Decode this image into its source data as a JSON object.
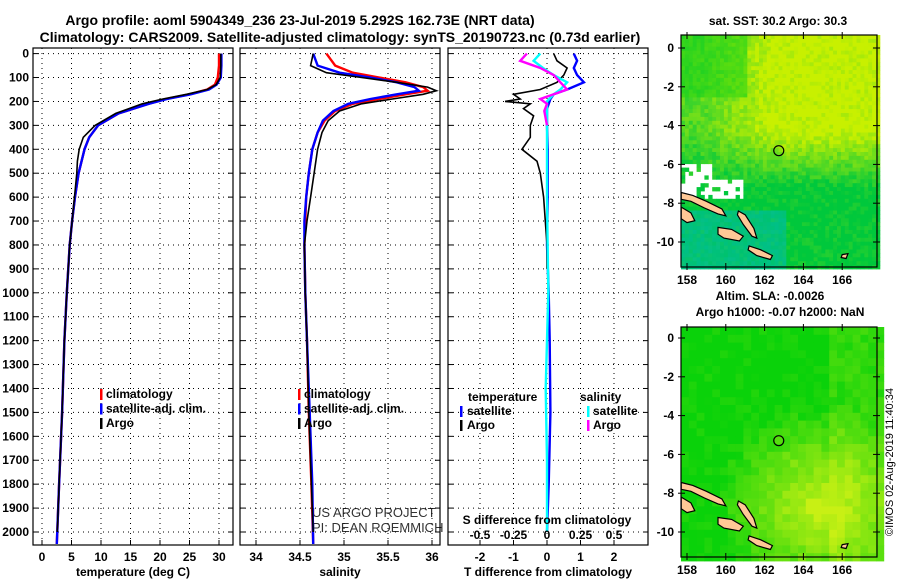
{
  "header": {
    "line1": "Argo profile: aoml 5904349_236 23-Jul-2019 5.292S 162.73E (NRT data)",
    "line2": "Climatology: CARS2009. Satellite-adjusted climatology: synTS_20190723.nc (0.73d earlier)"
  },
  "credits": {
    "line1": "US ARGO PROJECT",
    "line2": "PI: DEAN ROEMMICH",
    "timestamp": "©IMOS 02-Aug-2019 11:40:34"
  },
  "colors": {
    "climatology": "#ff0000",
    "satellite": "#0000ff",
    "argo": "#000000",
    "sal_satellite": "#00ffff",
    "sal_argo": "#ff00ff",
    "land": "#ffc896"
  },
  "chart_data": [
    {
      "type": "line",
      "name": "temperature-profile",
      "xlabel": "temperature (deg C)",
      "ylabel": "",
      "xlim": [
        -1.5,
        32
      ],
      "ylim": [
        2055,
        0
      ],
      "xticks": [
        0,
        5,
        10,
        15,
        20,
        25,
        30
      ],
      "yticks": [
        0,
        100,
        200,
        300,
        400,
        500,
        600,
        700,
        800,
        900,
        1000,
        1100,
        1200,
        1300,
        1400,
        1500,
        1600,
        1700,
        1800,
        1900,
        2000
      ],
      "legend": [
        "climatology",
        "satellite-adj. clim.",
        "Argo"
      ],
      "series": [
        {
          "name": "climatology",
          "color": "#ff0000",
          "depth": [
            0,
            50,
            100,
            130,
            150,
            170,
            190,
            210,
            250,
            300,
            350,
            400,
            500,
            600,
            700,
            800,
            1000,
            1200,
            1500,
            1800,
            2050
          ],
          "values": [
            30.0,
            30.0,
            29.8,
            29.3,
            28.0,
            25.0,
            21.0,
            18.0,
            13.0,
            9.5,
            8.0,
            7.2,
            6.2,
            5.6,
            5.1,
            4.7,
            4.2,
            3.8,
            3.4,
            2.9,
            2.5
          ]
        },
        {
          "name": "satellite-adj. clim.",
          "color": "#0000ff",
          "depth": [
            0,
            50,
            100,
            130,
            150,
            170,
            190,
            210,
            250,
            300,
            350,
            400,
            500,
            600,
            700,
            800,
            1000,
            1200,
            1500,
            1800,
            2050
          ],
          "values": [
            30.4,
            30.4,
            30.3,
            29.6,
            28.3,
            25.2,
            21.2,
            18.1,
            13.0,
            9.5,
            8.0,
            7.2,
            6.2,
            5.6,
            5.1,
            4.7,
            4.2,
            3.8,
            3.4,
            2.9,
            2.5
          ]
        },
        {
          "name": "Argo",
          "color": "#000000",
          "depth": [
            0,
            50,
            100,
            130,
            150,
            170,
            190,
            210,
            250,
            300,
            350,
            400,
            450,
            500,
            600,
            700,
            800,
            1000,
            1200,
            1500,
            1800,
            2000
          ],
          "values": [
            30.3,
            30.3,
            30.2,
            29.5,
            28.0,
            24.5,
            20.5,
            17.0,
            12.5,
            9.0,
            7.0,
            6.3,
            6.0,
            5.9,
            5.5,
            5.1,
            4.7,
            4.2,
            3.8,
            3.4,
            2.9,
            2.6
          ]
        }
      ]
    },
    {
      "type": "line",
      "name": "salinity-profile",
      "xlabel": "salinity",
      "xlim": [
        33.8,
        36.1
      ],
      "ylim": [
        2055,
        0
      ],
      "xticks": [
        34,
        34.5,
        35,
        35.5,
        36
      ],
      "legend": [
        "climatology",
        "satellite-adj. clim.",
        "Argo"
      ],
      "series": [
        {
          "name": "climatology",
          "color": "#ff0000",
          "depth": [
            0,
            50,
            80,
            100,
            120,
            140,
            155,
            170,
            190,
            210,
            240,
            280,
            330,
            400,
            500,
            600,
            700,
            800,
            1000,
            1200,
            1500,
            1800,
            2050
          ],
          "values": [
            34.8,
            34.9,
            35.1,
            35.4,
            35.7,
            35.9,
            35.95,
            35.7,
            35.4,
            35.1,
            34.9,
            34.78,
            34.7,
            34.64,
            34.6,
            34.57,
            34.56,
            34.55,
            34.56,
            34.58,
            34.6,
            34.63,
            34.65
          ]
        },
        {
          "name": "satellite-adj. clim.",
          "color": "#0000ff",
          "depth": [
            0,
            50,
            80,
            100,
            120,
            140,
            155,
            170,
            190,
            210,
            240,
            280,
            330,
            400,
            500,
            600,
            700,
            800,
            1000,
            1200,
            1500,
            1800,
            2050
          ],
          "values": [
            34.65,
            34.7,
            34.95,
            35.3,
            35.6,
            35.8,
            35.85,
            35.6,
            35.3,
            35.05,
            34.88,
            34.76,
            34.7,
            34.64,
            34.6,
            34.57,
            34.55,
            34.55,
            34.56,
            34.58,
            34.61,
            34.64,
            34.65
          ]
        },
        {
          "name": "Argo",
          "color": "#000000",
          "depth": [
            0,
            50,
            80,
            100,
            120,
            140,
            155,
            170,
            190,
            210,
            240,
            280,
            330,
            400,
            500,
            600,
            700,
            800,
            1000,
            1200,
            1500,
            1800,
            2000
          ],
          "values": [
            34.65,
            34.62,
            34.8,
            35.2,
            35.6,
            35.95,
            36.05,
            35.9,
            35.55,
            35.2,
            34.95,
            34.82,
            34.75,
            34.7,
            34.66,
            34.62,
            34.58,
            34.55,
            34.56,
            34.58,
            34.6,
            34.63,
            34.65
          ]
        }
      ]
    },
    {
      "type": "line",
      "name": "difference-profile",
      "xlabel": "T difference from climatology",
      "xlim": [
        -2.95,
        3.0
      ],
      "xticks": [
        -2,
        -1,
        0,
        1,
        2
      ],
      "s_label": "S difference from climatology",
      "s_ticks": [
        "-0.5",
        "-0.25",
        "0",
        "0.25",
        "0.5"
      ],
      "s_tick_values": [
        -0.5,
        -0.25,
        0,
        0.25,
        0.5
      ],
      "legend_t_title": "temperature",
      "legend_s_title": "salinity",
      "legend_t": [
        "satellite",
        "Argo"
      ],
      "legend_s": [
        "satellite",
        "Argo"
      ],
      "series": [
        {
          "name": "T satellite",
          "unit": "T",
          "color": "#0000ff",
          "depth": [
            0,
            30,
            60,
            90,
            120,
            150,
            170,
            190,
            210,
            230,
            260,
            300,
            400,
            600,
            800,
            1000,
            1200,
            1500,
            1800,
            2000
          ],
          "values": [
            0.8,
            0.9,
            0.8,
            0.9,
            1.1,
            0.6,
            0.2,
            0.1,
            0.05,
            0,
            0,
            0,
            0.02,
            0.02,
            0,
            0.05,
            0.08,
            0.1,
            0.05,
            0
          ]
        },
        {
          "name": "T Argo",
          "unit": "T",
          "color": "#000000",
          "depth": [
            0,
            30,
            60,
            90,
            120,
            150,
            170,
            190,
            200,
            210,
            230,
            260,
            300,
            350,
            400,
            450,
            500,
            600,
            700,
            800,
            900
          ],
          "values": [
            0.2,
            0.3,
            0.6,
            0.5,
            0.3,
            -0.2,
            -1.0,
            -0.8,
            -1.25,
            -0.5,
            -0.7,
            -0.4,
            -0.5,
            -0.5,
            -0.75,
            -0.3,
            -0.2,
            -0.1,
            -0.05,
            0,
            0
          ]
        },
        {
          "name": "S satellite",
          "unit": "S",
          "color": "#00ffff",
          "depth": [
            0,
            30,
            60,
            90,
            120,
            150,
            170,
            200,
            300,
            600,
            1000,
            1400,
            1700,
            2000
          ],
          "values": [
            -0.05,
            -0.1,
            -0.03,
            0.05,
            0.15,
            0.1,
            0.05,
            0,
            0,
            0,
            0.01,
            -0.01,
            0,
            0
          ]
        },
        {
          "name": "S Argo",
          "unit": "S",
          "color": "#ff00ff",
          "depth": [
            0,
            30,
            60,
            90,
            120,
            150,
            170,
            190,
            210,
            240,
            300
          ],
          "values": [
            -0.15,
            -0.2,
            -0.05,
            0.05,
            0.1,
            0.15,
            0.05,
            -0.05,
            0.0,
            -0.02,
            0
          ]
        }
      ]
    },
    {
      "type": "heatmap",
      "name": "sst-map",
      "title": "sat. SST: 30.2 Argo: 30.3",
      "xticks": [
        "158",
        "160",
        "162",
        "164",
        "166"
      ],
      "yticks": [
        "0",
        "-2",
        "-4",
        "-6",
        "-8",
        "-10"
      ],
      "xlim": [
        157.7,
        167.8
      ],
      "ylim": [
        -11.3,
        0.67
      ],
      "marker": {
        "lon": 162.73,
        "lat": -5.292
      }
    },
    {
      "type": "heatmap",
      "name": "sla-map",
      "title": "Altim. SLA: -0.0026",
      "subtitle": "Argo h1000: -0.07 h2000: NaN",
      "xticks": [
        "158",
        "160",
        "162",
        "164",
        "166"
      ],
      "yticks": [
        "0",
        "-2",
        "-4",
        "-6",
        "-8",
        "-10"
      ],
      "xlim": [
        157.7,
        167.8
      ],
      "ylim": [
        -11.3,
        0.67
      ],
      "marker": {
        "lon": 162.73,
        "lat": -5.292
      }
    }
  ]
}
